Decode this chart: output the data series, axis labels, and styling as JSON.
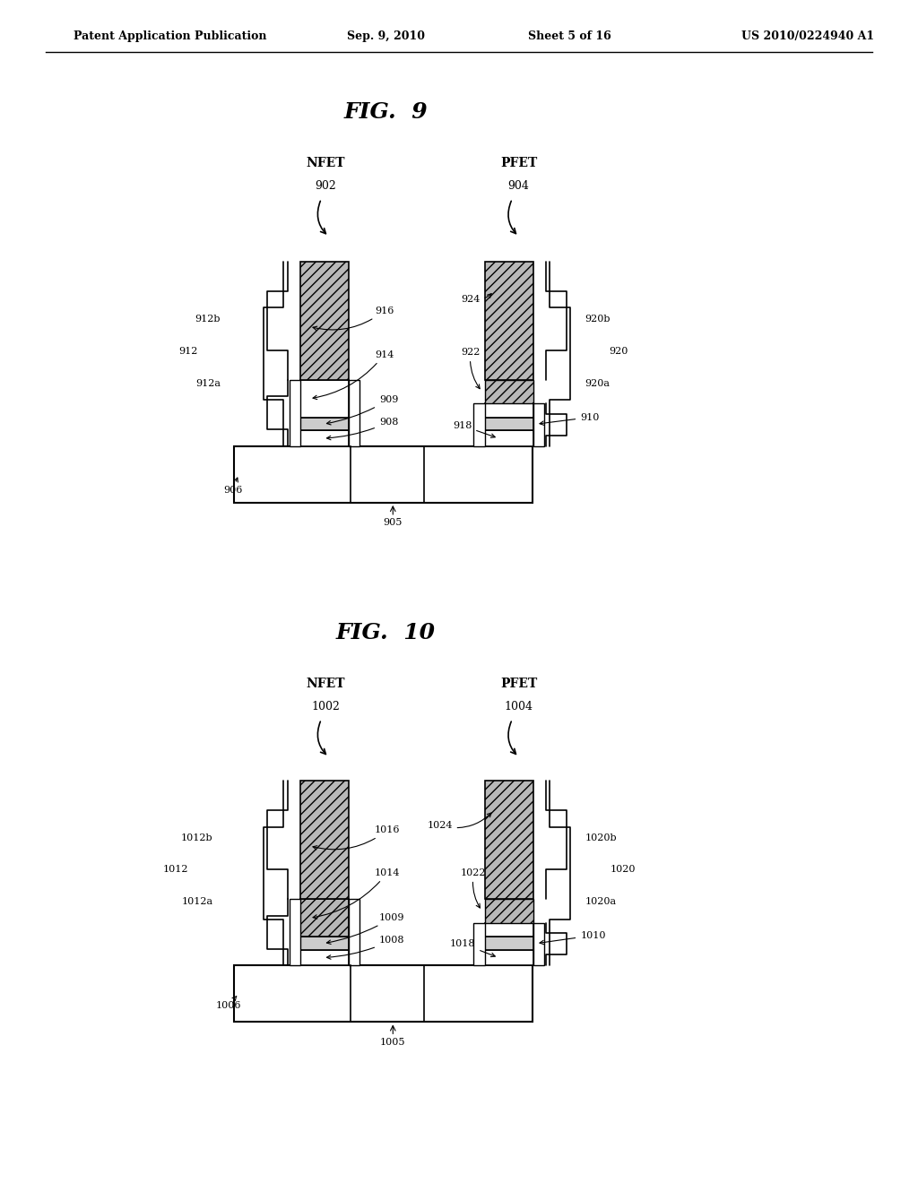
{
  "bg_color": "#ffffff",
  "header_text": "Patent Application Publication",
  "header_date": "Sep. 9, 2010",
  "header_sheet": "Sheet 5 of 16",
  "header_patent": "US 2010/0224940 A1",
  "fig9_title": "FIG.  9",
  "fig10_title": "FIG.  10",
  "gate_hatch": "///",
  "gate_color": "#b8b8b8",
  "gate_edge": "#000000",
  "spacer_color": "#ffffff"
}
